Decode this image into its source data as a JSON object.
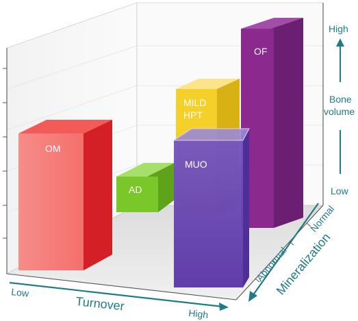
{
  "bars": [
    {
      "label": "OM",
      "color": "#e8282e"
    },
    {
      "label": "AD",
      "color": "#7ac729"
    },
    {
      "label": "MILD",
      "label2": "HPT",
      "color": "#f5d028"
    },
    {
      "label": "MUO",
      "color": "#6d3bb0"
    },
    {
      "label": "OF",
      "color": "#8a2a8f"
    }
  ],
  "axes": {
    "x": {
      "title": "Turnover",
      "low": "Low",
      "high": "High"
    },
    "z": {
      "title": "Mineralization",
      "low": "Abnormal",
      "high": "Normal"
    },
    "y": {
      "title1": "Bone",
      "title2": "volume",
      "low": "Low",
      "high": "High"
    }
  },
  "colors": {
    "axis": "#1f7b84",
    "frame": "#555555"
  }
}
